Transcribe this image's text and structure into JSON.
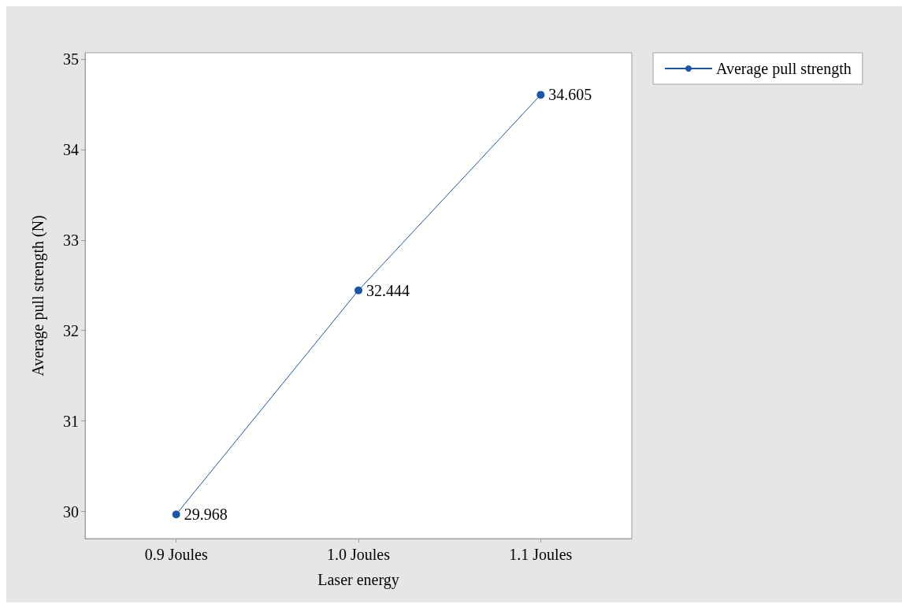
{
  "chart_data": {
    "type": "line",
    "xlabel": "Laser energy",
    "ylabel": "Average pull strength (N)",
    "categories": [
      "0.9 Joules",
      "1.0 Joules",
      "1.1 Joules"
    ],
    "series": [
      {
        "name": "Average pull strength",
        "color": "#1a56a8",
        "values": [
          29.968,
          32.444,
          34.605
        ]
      }
    ],
    "ylim": [
      29.7,
      35.07
    ],
    "yticks": [
      30,
      31,
      32,
      33,
      34,
      35
    ],
    "grid": false,
    "legend": "top right",
    "marker": "circle",
    "line_style": "solid",
    "data_labels": true
  }
}
